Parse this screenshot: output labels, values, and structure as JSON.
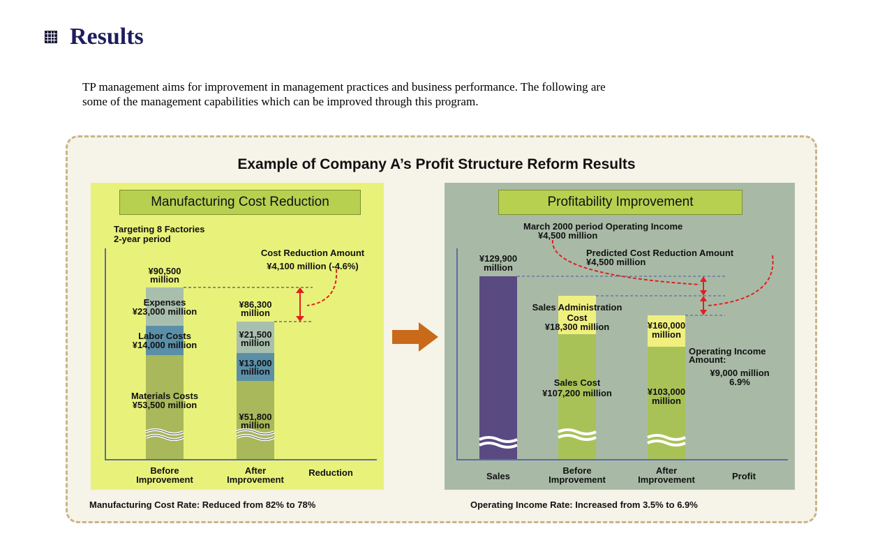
{
  "section": {
    "title": "Results",
    "intro_line1": "TP management aims for improvement in management practices and business performance. The following are",
    "intro_line2": "some of the management capabilities which can be improved through this program."
  },
  "diagram": {
    "title": "Example of Company A’s Profit Structure Reform Results",
    "left": {
      "box_title": "Manufacturing Cost Reduction",
      "scope_line1": "Targeting 8 Factories",
      "scope_line2": "2-year period",
      "reduction_title": "Cost Reduction Amount",
      "reduction_value": "¥4,100 million (-4.6%)",
      "before_total_line1": "¥90,500",
      "before_total_line2": "million",
      "expenses_line1": "Expenses",
      "expenses_line2": "¥23,000 million",
      "labor_line1": "Labor Costs",
      "labor_line2": "¥14,000 million",
      "materials_line1": "Materials Costs",
      "materials_line2": "¥53,500 million",
      "after_total_line1": "¥86,300",
      "after_total_line2": "million",
      "after_exp_line1": "¥21,500",
      "after_exp_line2": "million",
      "after_labor_line1": "¥13,000",
      "after_labor_line2": "million",
      "after_mat_line1": "¥51,800",
      "after_mat_line2": "million",
      "x_before_line1": "Before",
      "x_before_line2": "Improvement",
      "x_after_line1": "After",
      "x_after_line2": "Improvement",
      "x_reduction": "Reduction",
      "caption": "Manufacturing Cost Rate: Reduced from 82% to 78%"
    },
    "right": {
      "box_title": "Profitability Improvement",
      "income_title": "March 2000 period  Operating Income",
      "income_value": "¥4,500 million",
      "predicted_title": "Predicted Cost Reduction Amount",
      "predicted_value": "¥4,500 million",
      "sales_line1": "¥129,900",
      "sales_line2": "million",
      "admin_line1": "Sales Administration",
      "admin_line2": "Cost",
      "admin_line3": "¥18,300 million",
      "salescost_line1": "Sales Cost",
      "salescost_line2": "¥107,200 million",
      "after_admin_line1": "¥160,000",
      "after_admin_line2": "million",
      "after_cost_line1": "¥103,000",
      "after_cost_line2": "million",
      "op_line1": "Operating Income",
      "op_line2": "Amount:",
      "op_line3": "¥9,000 million",
      "op_line4": "6.9%",
      "x_sales": "Sales",
      "x_before_line1": "Before",
      "x_before_line2": "Improvement",
      "x_after_line1": "After",
      "x_after_line2": "Improvement",
      "x_profit": "Profit",
      "caption": "Operating Income Rate: Increased from 3.5% to 6.9%"
    },
    "colors": {
      "left_panel": "#e8f27a",
      "right_panel": "#a8baa6",
      "materials": "#a8b85a",
      "labor": "#5b8fa8",
      "expenses": "#a9bfae",
      "sales_bar": "#5a4a82",
      "cost_bar": "#a9c258",
      "admin_bar": "#f0f080",
      "arrow": "#c86a1a",
      "red": "#e02020"
    }
  }
}
